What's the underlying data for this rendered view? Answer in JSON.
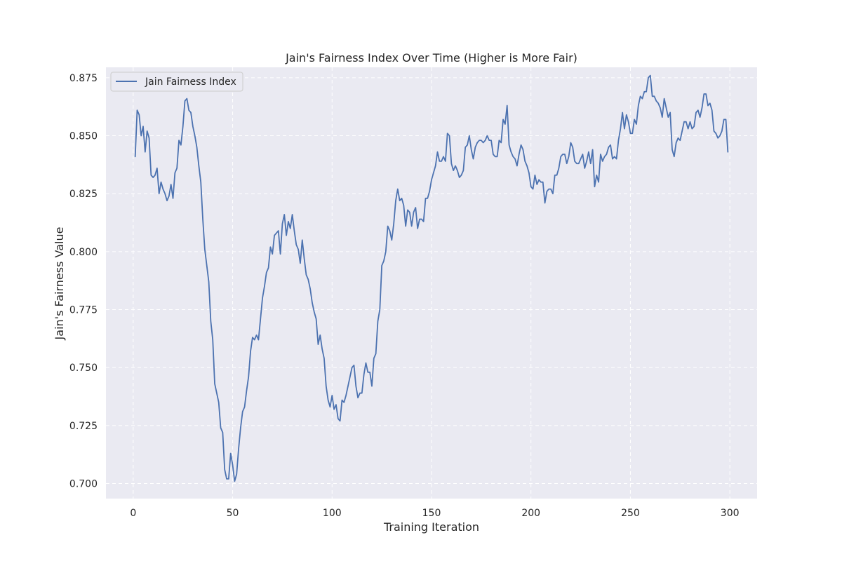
{
  "chart_data": {
    "type": "line",
    "title": "Jain's Fairness Index Over Time (Higher is More Fair)",
    "xlabel": "Training Iteration",
    "ylabel": "Jain's Fairness Value",
    "xlim": [
      -13.7,
      313.7
    ],
    "ylim": [
      0.6935,
      0.8795
    ],
    "xticks": [
      0,
      50,
      100,
      150,
      200,
      250,
      300
    ],
    "xtick_labels": [
      "0",
      "50",
      "100",
      "150",
      "200",
      "250",
      "300"
    ],
    "yticks": [
      0.7,
      0.725,
      0.75,
      0.775,
      0.8,
      0.825,
      0.85,
      0.875
    ],
    "ytick_labels": [
      "0.700",
      "0.725",
      "0.750",
      "0.775",
      "0.800",
      "0.825",
      "0.850",
      "0.875"
    ],
    "grid": true,
    "legend": {
      "position": "top-left"
    },
    "colors": {
      "plot_bg": "#eaeaf2",
      "grid": "#ffffff",
      "line": "#4c72b0",
      "text": "#262626"
    },
    "series": [
      {
        "name": "Jain Fairness Index",
        "x_start": 1,
        "x_step": 1,
        "values": [
          0.841,
          0.861,
          0.859,
          0.85,
          0.854,
          0.843,
          0.852,
          0.849,
          0.833,
          0.832,
          0.833,
          0.836,
          0.825,
          0.83,
          0.827,
          0.825,
          0.822,
          0.824,
          0.829,
          0.823,
          0.834,
          0.836,
          0.848,
          0.846,
          0.854,
          0.865,
          0.866,
          0.861,
          0.86,
          0.854,
          0.85,
          0.845,
          0.837,
          0.83,
          0.814,
          0.801,
          0.794,
          0.787,
          0.77,
          0.762,
          0.743,
          0.739,
          0.735,
          0.724,
          0.722,
          0.706,
          0.702,
          0.702,
          0.713,
          0.708,
          0.701,
          0.704,
          0.715,
          0.724,
          0.731,
          0.733,
          0.74,
          0.746,
          0.757,
          0.763,
          0.762,
          0.764,
          0.762,
          0.771,
          0.78,
          0.785,
          0.791,
          0.793,
          0.802,
          0.799,
          0.807,
          0.808,
          0.809,
          0.799,
          0.812,
          0.816,
          0.807,
          0.813,
          0.81,
          0.816,
          0.809,
          0.803,
          0.801,
          0.795,
          0.805,
          0.797,
          0.79,
          0.788,
          0.784,
          0.778,
          0.774,
          0.771,
          0.76,
          0.764,
          0.758,
          0.754,
          0.742,
          0.736,
          0.733,
          0.738,
          0.732,
          0.734,
          0.728,
          0.727,
          0.736,
          0.735,
          0.738,
          0.742,
          0.746,
          0.75,
          0.751,
          0.742,
          0.737,
          0.739,
          0.739,
          0.747,
          0.752,
          0.748,
          0.748,
          0.742,
          0.754,
          0.756,
          0.77,
          0.775,
          0.794,
          0.796,
          0.8,
          0.811,
          0.809,
          0.805,
          0.812,
          0.822,
          0.827,
          0.822,
          0.823,
          0.82,
          0.811,
          0.818,
          0.817,
          0.811,
          0.817,
          0.819,
          0.81,
          0.814,
          0.814,
          0.813,
          0.823,
          0.823,
          0.826,
          0.831,
          0.834,
          0.837,
          0.843,
          0.839,
          0.839,
          0.841,
          0.839,
          0.851,
          0.85,
          0.838,
          0.835,
          0.837,
          0.835,
          0.832,
          0.833,
          0.835,
          0.845,
          0.846,
          0.85,
          0.844,
          0.84,
          0.845,
          0.847,
          0.848,
          0.848,
          0.847,
          0.848,
          0.85,
          0.848,
          0.848,
          0.842,
          0.841,
          0.841,
          0.848,
          0.847,
          0.857,
          0.855,
          0.863,
          0.846,
          0.843,
          0.841,
          0.84,
          0.837,
          0.842,
          0.846,
          0.844,
          0.839,
          0.837,
          0.834,
          0.828,
          0.827,
          0.833,
          0.829,
          0.831,
          0.83,
          0.83,
          0.821,
          0.826,
          0.827,
          0.827,
          0.825,
          0.833,
          0.833,
          0.836,
          0.841,
          0.842,
          0.842,
          0.838,
          0.841,
          0.847,
          0.845,
          0.839,
          0.838,
          0.838,
          0.84,
          0.842,
          0.836,
          0.839,
          0.843,
          0.838,
          0.844,
          0.828,
          0.833,
          0.83,
          0.842,
          0.839,
          0.841,
          0.842,
          0.845,
          0.846,
          0.84,
          0.841,
          0.84,
          0.848,
          0.853,
          0.86,
          0.853,
          0.859,
          0.856,
          0.851,
          0.851,
          0.857,
          0.855,
          0.863,
          0.867,
          0.866,
          0.869,
          0.869,
          0.875,
          0.876,
          0.867,
          0.867,
          0.865,
          0.864,
          0.862,
          0.858,
          0.866,
          0.862,
          0.858,
          0.86,
          0.844,
          0.841,
          0.847,
          0.849,
          0.848,
          0.852,
          0.856,
          0.856,
          0.853,
          0.856,
          0.853,
          0.854,
          0.86,
          0.861,
          0.858,
          0.862,
          0.868,
          0.868,
          0.863,
          0.864,
          0.861,
          0.852,
          0.851,
          0.849,
          0.85,
          0.852,
          0.857,
          0.857,
          0.843
        ]
      }
    ]
  }
}
